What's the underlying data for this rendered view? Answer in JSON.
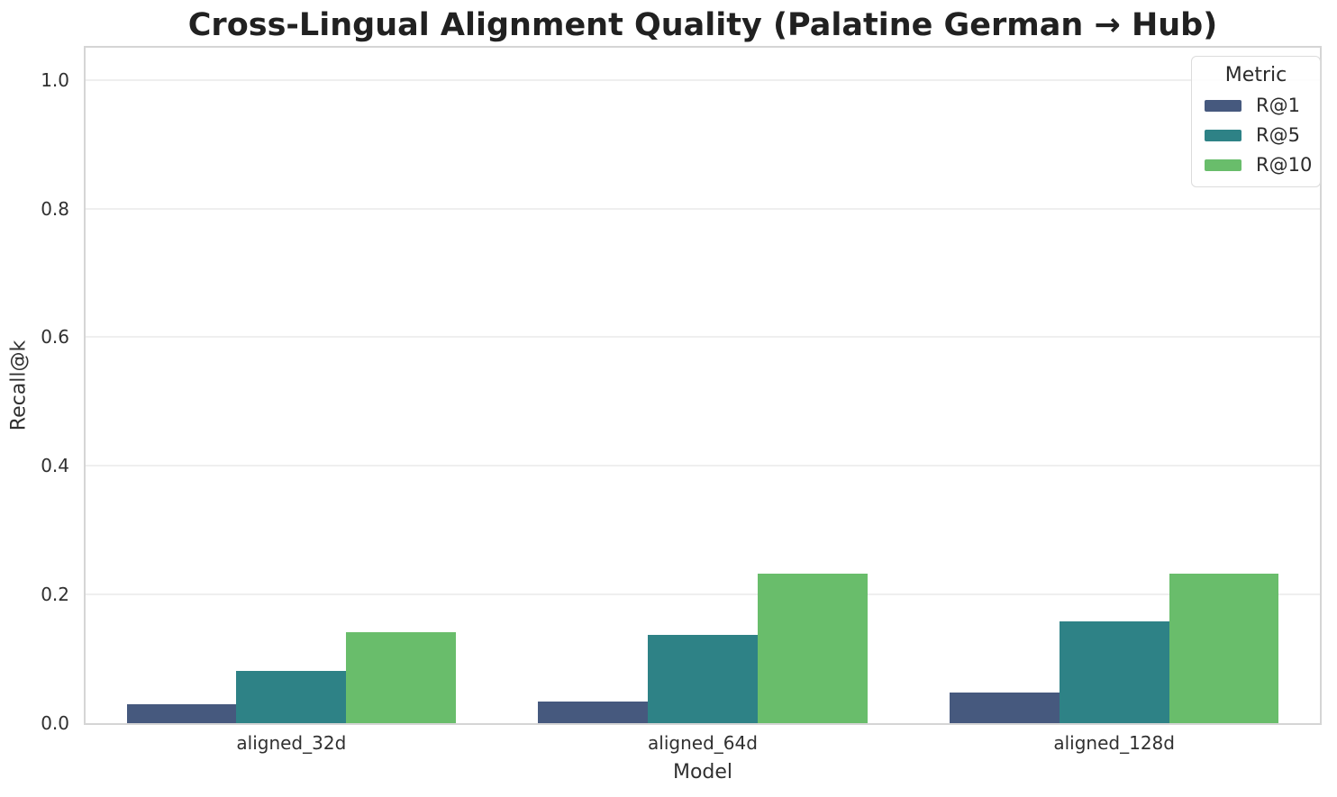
{
  "chart_data": {
    "type": "bar",
    "title": "Cross-Lingual Alignment Quality (Palatine German → Hub)",
    "xlabel": "Model",
    "ylabel": "Recall@k",
    "categories": [
      "aligned_32d",
      "aligned_64d",
      "aligned_128d"
    ],
    "series": [
      {
        "name": "R@1",
        "color": "#46597E",
        "values": [
          0.029,
          0.034,
          0.047
        ]
      },
      {
        "name": "R@5",
        "color": "#2E8286",
        "values": [
          0.081,
          0.137,
          0.158
        ]
      },
      {
        "name": "R@10",
        "color": "#69BD6B",
        "values": [
          0.141,
          0.232,
          0.232
        ]
      }
    ],
    "ylim": [
      0,
      1.05
    ],
    "yticks": [
      0,
      0.2,
      0.4,
      0.6,
      0.8,
      1.0
    ],
    "ytick_labels": [
      "0.0",
      "0.2",
      "0.4",
      "0.6",
      "0.8",
      "1.0"
    ],
    "grid": true,
    "bar_group_fraction": 0.8,
    "legend": {
      "title": "Metric",
      "position": "upper right",
      "entries": [
        "R@1",
        "R@5",
        "R@10"
      ]
    }
  },
  "colors": {
    "background": "#ffffff",
    "grid": "#efefef",
    "spine": "#d5d5d5",
    "text": "#303030",
    "title_text": "#212121"
  }
}
